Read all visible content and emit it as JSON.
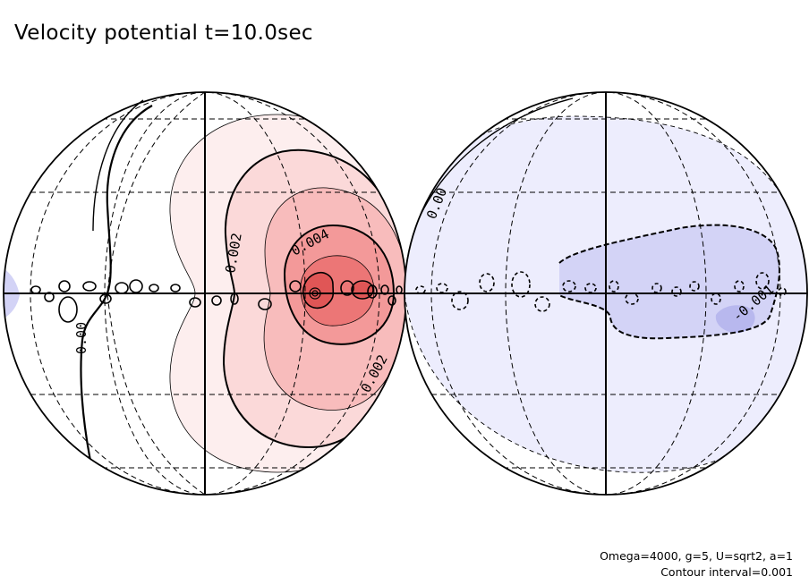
{
  "chart_data": {
    "type": "contour",
    "title": "Velocity potential t=10.0sec",
    "projection": "orthographic (two hemispheres)",
    "hemispheres": [
      "positive (red shading)",
      "negative (blue shading)"
    ],
    "contour_interval": 0.001,
    "contour_labels": [
      {
        "hemisphere": "left",
        "value": "0.00"
      },
      {
        "hemisphere": "left",
        "value": "0.002"
      },
      {
        "hemisphere": "left",
        "value": "0.004"
      },
      {
        "hemisphere": "left",
        "value": "0.002"
      },
      {
        "hemisphere": "right",
        "value": "0.00"
      },
      {
        "hemisphere": "right",
        "value": "-0.001"
      }
    ],
    "parameters_text": "Omega=4000, g=5, U=sqrt2, a=1",
    "interval_text": "Contour interval=0.001",
    "colors": {
      "positive_levels": [
        "#fdeeee",
        "#fbd9d9",
        "#f8bcbc",
        "#f39999",
        "#ec7676",
        "#e05656"
      ],
      "negative_levels": [
        "#ededfd",
        "#d3d3f6",
        "#b8b8ee"
      ]
    }
  }
}
